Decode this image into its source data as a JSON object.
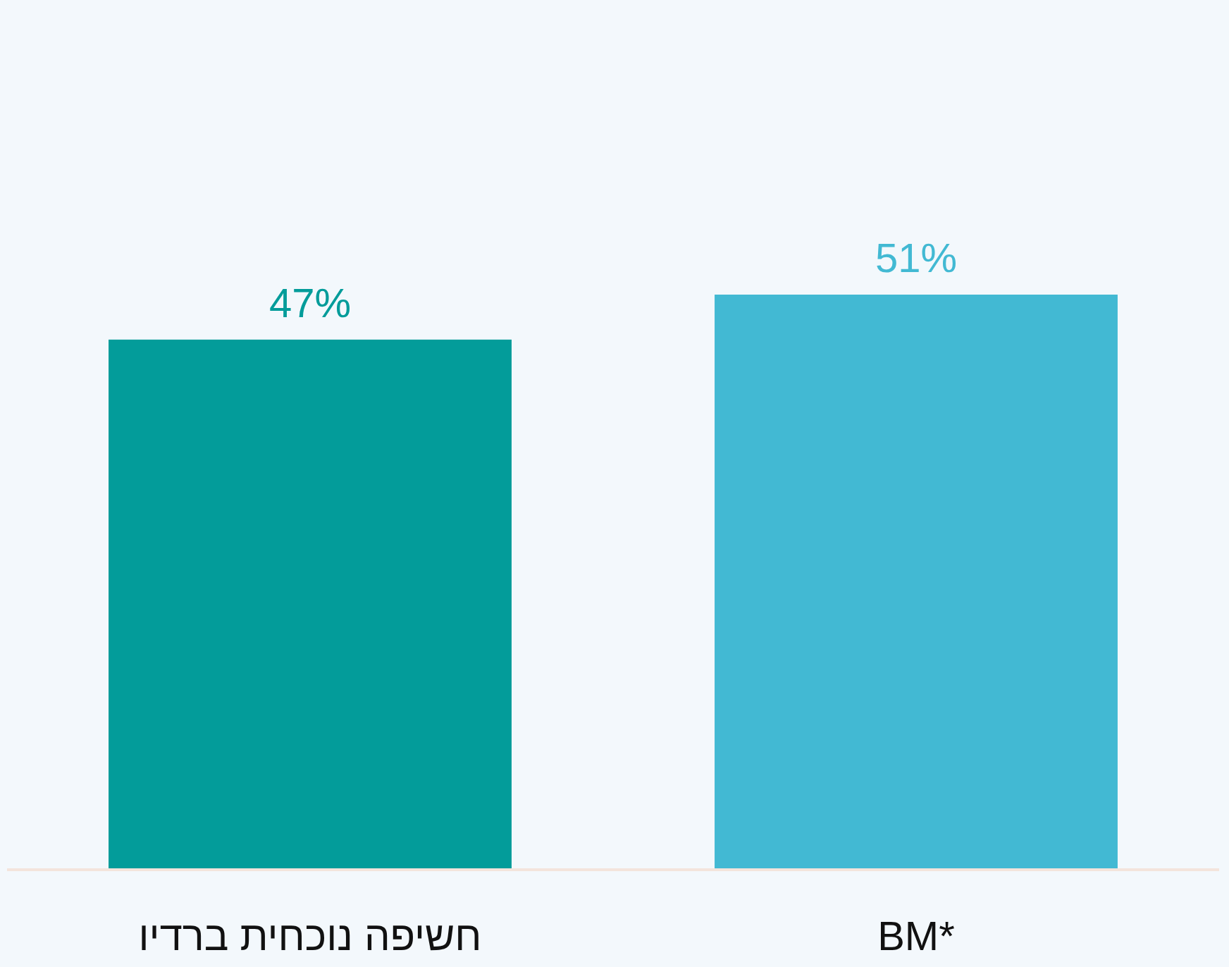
{
  "chart_data": {
    "type": "bar",
    "categories": [
      "חשיפה נוכחית ברדיו",
      "BM*"
    ],
    "values": [
      47,
      51
    ],
    "colors": [
      "#039c9a",
      "#42b9d3"
    ],
    "value_labels": [
      "47%",
      "51%"
    ]
  }
}
